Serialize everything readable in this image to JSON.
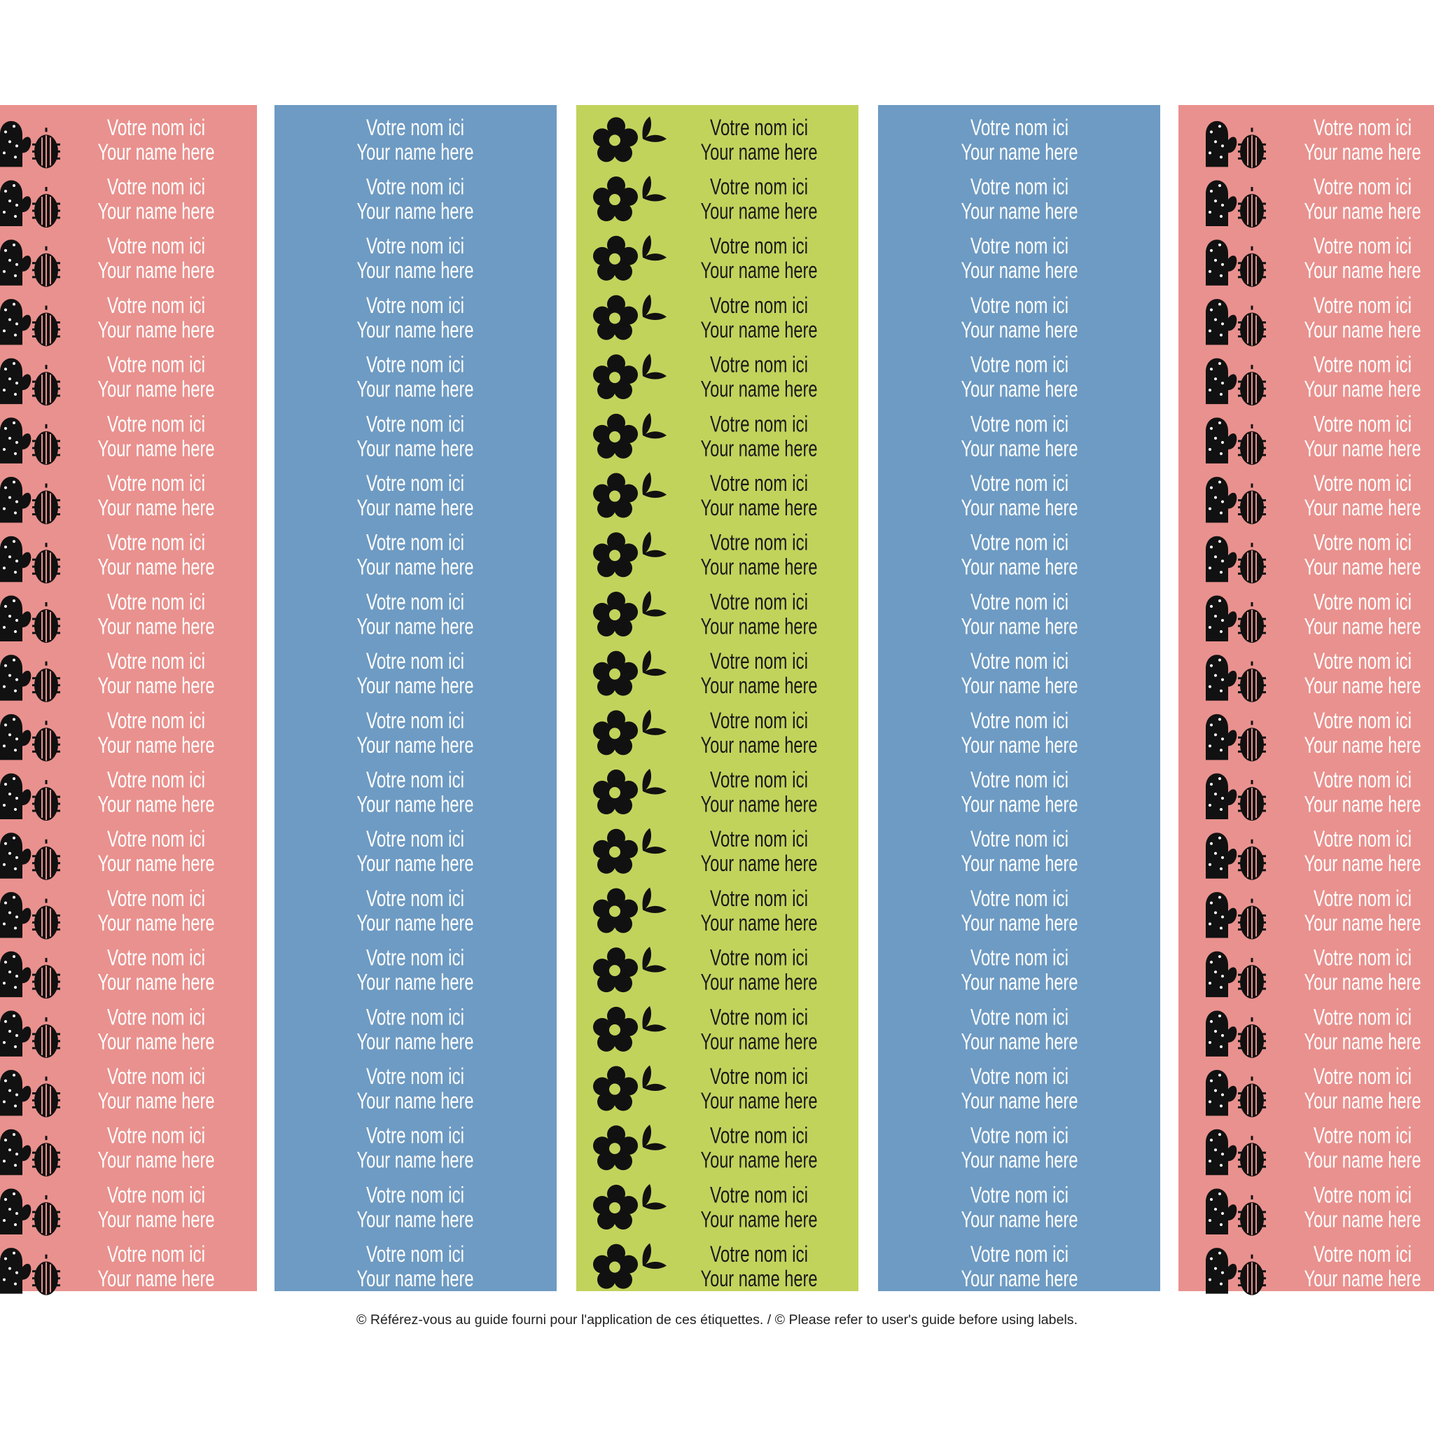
{
  "sheet": {
    "columns": [
      {
        "color": "#e9918e",
        "text_color": "#ffffff",
        "icon": "cactus",
        "labels": [
          [
            "Votre nom ici",
            "Your name here"
          ],
          [
            "Votre nom ici",
            "Your name here"
          ],
          [
            "Votre nom ici",
            "Your name here"
          ],
          [
            "Votre nom ici",
            "Your name here"
          ],
          [
            "Votre nom ici",
            "Your name here"
          ],
          [
            "Votre nom ici",
            "Your name here"
          ],
          [
            "Votre nom ici",
            "Your name here"
          ],
          [
            "Votre nom ici",
            "Your name here"
          ],
          [
            "Votre nom ici",
            "Your name here"
          ],
          [
            "Votre nom ici",
            "Your name here"
          ],
          [
            "Votre nom ici",
            "Your name here"
          ],
          [
            "Votre nom ici",
            "Your name here"
          ],
          [
            "Votre nom ici",
            "Your name here"
          ],
          [
            "Votre nom ici",
            "Your name here"
          ],
          [
            "Votre nom ici",
            "Your name here"
          ],
          [
            "Votre nom ici",
            "Your name here"
          ],
          [
            "Votre nom ici",
            "Your name here"
          ],
          [
            "Votre nom ici",
            "Your name here"
          ],
          [
            "Votre nom ici",
            "Your name here"
          ],
          [
            "Votre nom ici",
            "Your name here"
          ]
        ]
      },
      {
        "color": "#6e9bc3",
        "text_color": "#ffffff",
        "icon": "none",
        "labels": [
          [
            "Votre nom ici",
            "Your name here"
          ],
          [
            "Votre nom ici",
            "Your name here"
          ],
          [
            "Votre nom ici",
            "Your name here"
          ],
          [
            "Votre nom ici",
            "Your name here"
          ],
          [
            "Votre nom ici",
            "Your name here"
          ],
          [
            "Votre nom ici",
            "Your name here"
          ],
          [
            "Votre nom ici",
            "Your name here"
          ],
          [
            "Votre nom ici",
            "Your name here"
          ],
          [
            "Votre nom ici",
            "Your name here"
          ],
          [
            "Votre nom ici",
            "Your name here"
          ],
          [
            "Votre nom ici",
            "Your name here"
          ],
          [
            "Votre nom ici",
            "Your name here"
          ],
          [
            "Votre nom ici",
            "Your name here"
          ],
          [
            "Votre nom ici",
            "Your name here"
          ],
          [
            "Votre nom ici",
            "Your name here"
          ],
          [
            "Votre nom ici",
            "Your name here"
          ],
          [
            "Votre nom ici",
            "Your name here"
          ],
          [
            "Votre nom ici",
            "Your name here"
          ],
          [
            "Votre nom ici",
            "Your name here"
          ],
          [
            "Votre nom ici",
            "Your name here"
          ]
        ]
      },
      {
        "color": "#c2d35c",
        "text_color": "#1a1a1a",
        "icon": "flower",
        "labels": [
          [
            "Votre nom ici",
            "Your name here"
          ],
          [
            "Votre nom ici",
            "Your name here"
          ],
          [
            "Votre nom ici",
            "Your name here"
          ],
          [
            "Votre nom ici",
            "Your name here"
          ],
          [
            "Votre nom ici",
            "Your name here"
          ],
          [
            "Votre nom ici",
            "Your name here"
          ],
          [
            "Votre nom ici",
            "Your name here"
          ],
          [
            "Votre nom ici",
            "Your name here"
          ],
          [
            "Votre nom ici",
            "Your name here"
          ],
          [
            "Votre nom ici",
            "Your name here"
          ],
          [
            "Votre nom ici",
            "Your name here"
          ],
          [
            "Votre nom ici",
            "Your name here"
          ],
          [
            "Votre nom ici",
            "Your name here"
          ],
          [
            "Votre nom ici",
            "Your name here"
          ],
          [
            "Votre nom ici",
            "Your name here"
          ],
          [
            "Votre nom ici",
            "Your name here"
          ],
          [
            "Votre nom ici",
            "Your name here"
          ],
          [
            "Votre nom ici",
            "Your name here"
          ],
          [
            "Votre nom ici",
            "Your name here"
          ],
          [
            "Votre nom ici",
            "Your name here"
          ]
        ]
      },
      {
        "color": "#6e9bc3",
        "text_color": "#ffffff",
        "icon": "none",
        "labels": [
          [
            "Votre nom ici",
            "Your name here"
          ],
          [
            "Votre nom ici",
            "Your name here"
          ],
          [
            "Votre nom ici",
            "Your name here"
          ],
          [
            "Votre nom ici",
            "Your name here"
          ],
          [
            "Votre nom ici",
            "Your name here"
          ],
          [
            "Votre nom ici",
            "Your name here"
          ],
          [
            "Votre nom ici",
            "Your name here"
          ],
          [
            "Votre nom ici",
            "Your name here"
          ],
          [
            "Votre nom ici",
            "Your name here"
          ],
          [
            "Votre nom ici",
            "Your name here"
          ],
          [
            "Votre nom ici",
            "Your name here"
          ],
          [
            "Votre nom ici",
            "Your name here"
          ],
          [
            "Votre nom ici",
            "Your name here"
          ],
          [
            "Votre nom ici",
            "Your name here"
          ],
          [
            "Votre nom ici",
            "Your name here"
          ],
          [
            "Votre nom ici",
            "Your name here"
          ],
          [
            "Votre nom ici",
            "Your name here"
          ],
          [
            "Votre nom ici",
            "Your name here"
          ],
          [
            "Votre nom ici",
            "Your name here"
          ],
          [
            "Votre nom ici",
            "Your name here"
          ]
        ]
      },
      {
        "color": "#e9918e",
        "text_color": "#ffffff",
        "icon": "cactus",
        "labels": [
          [
            "Votre nom ici",
            "Your name here"
          ],
          [
            "Votre nom ici",
            "Your name here"
          ],
          [
            "Votre nom ici",
            "Your name here"
          ],
          [
            "Votre nom ici",
            "Your name here"
          ],
          [
            "Votre nom ici",
            "Your name here"
          ],
          [
            "Votre nom ici",
            "Your name here"
          ],
          [
            "Votre nom ici",
            "Your name here"
          ],
          [
            "Votre nom ici",
            "Your name here"
          ],
          [
            "Votre nom ici",
            "Your name here"
          ],
          [
            "Votre nom ici",
            "Your name here"
          ],
          [
            "Votre nom ici",
            "Your name here"
          ],
          [
            "Votre nom ici",
            "Your name here"
          ],
          [
            "Votre nom ici",
            "Your name here"
          ],
          [
            "Votre nom ici",
            "Your name here"
          ],
          [
            "Votre nom ici",
            "Your name here"
          ],
          [
            "Votre nom ici",
            "Your name here"
          ],
          [
            "Votre nom ici",
            "Your name here"
          ],
          [
            "Votre nom ici",
            "Your name here"
          ],
          [
            "Votre nom ici",
            "Your name here"
          ],
          [
            "Votre nom ici",
            "Your name here"
          ]
        ]
      }
    ],
    "footer": "© Référez-vous au guide fourni pour l'application de ces étiquettes. / © Please refer to user's guide before using labels."
  }
}
